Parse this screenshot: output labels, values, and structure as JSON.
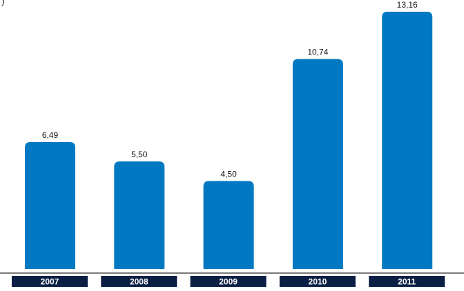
{
  "corner_mark": ")",
  "colors": {
    "bar": "#0079C2",
    "year_box": "#0B1F45",
    "baseline": "#2B2B2B",
    "text": "#111111",
    "year_text": "#FFFFFF"
  },
  "chart_data": {
    "type": "bar",
    "categories": [
      "2007",
      "2008",
      "2009",
      "2010",
      "2011"
    ],
    "values": [
      6.49,
      5.5,
      4.5,
      10.74,
      13.16
    ],
    "value_labels": [
      "6,49",
      "5,50",
      "4,50",
      "10,74",
      "13,16"
    ],
    "title": "",
    "xlabel": "",
    "ylabel": "",
    "ylim": [
      0,
      13.16
    ],
    "grid": false,
    "legend": "none"
  }
}
